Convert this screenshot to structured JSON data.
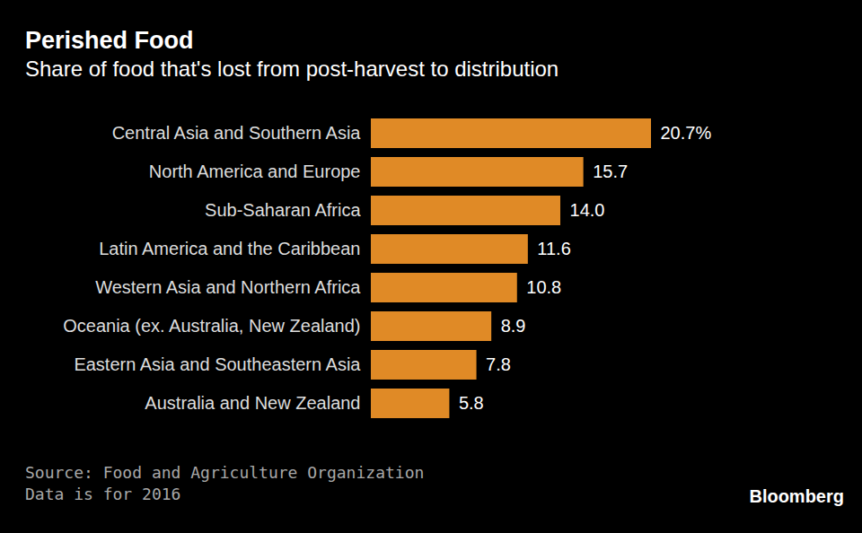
{
  "chart_data": {
    "type": "bar",
    "orientation": "horizontal",
    "title": "Perished Food",
    "subtitle": "Share of food that's lost from post-harvest to distribution",
    "categories": [
      "Central Asia and Southern Asia",
      "North America and Europe",
      "Sub-Saharan Africa",
      "Latin America and the Caribbean",
      "Western Asia and Northern Africa",
      "Oceania (ex. Australia, New Zealand)",
      "Eastern Asia and Southeastern Asia",
      "Australia and New Zealand"
    ],
    "values": [
      20.7,
      15.7,
      14.0,
      11.6,
      10.8,
      8.9,
      7.8,
      5.8
    ],
    "value_labels": [
      "20.7%",
      "15.7",
      "14.0",
      "11.6",
      "10.8",
      "8.9",
      "7.8",
      "5.8"
    ],
    "data_labels": true,
    "color": "#e08a26",
    "xlim": [
      0,
      20.7
    ],
    "tick_labels": "y",
    "source": "Source: Food and Agriculture Organization",
    "note": "Data is for 2016",
    "credit": "Bloomberg"
  }
}
